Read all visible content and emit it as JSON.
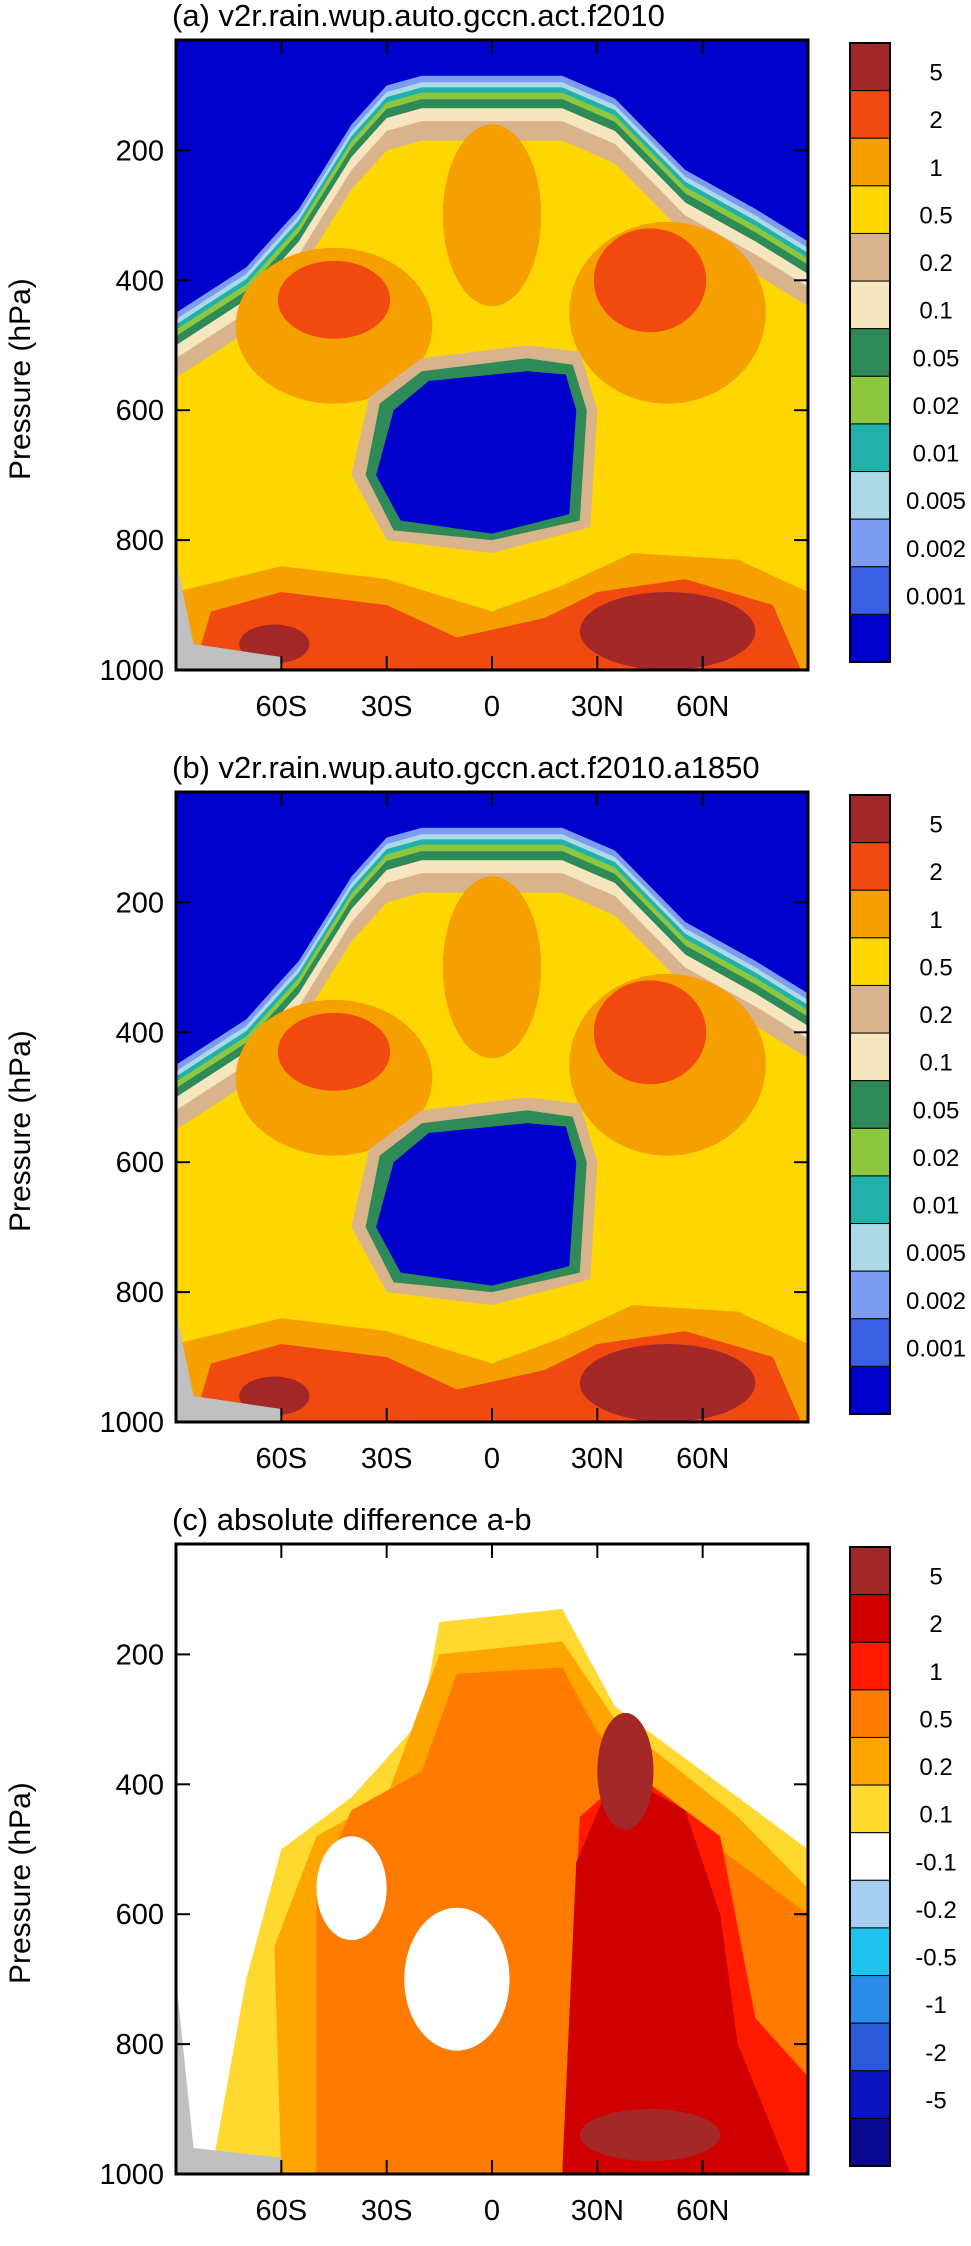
{
  "chart_data": [
    {
      "type": "heatmap",
      "title": "(a) v2r.rain.wup.auto.gccn.act.f2010",
      "ylabel": "Pressure (hPa)",
      "xlabel": "",
      "x_tick_labels": [
        "60S",
        "30S",
        "0",
        "30N",
        "60N"
      ],
      "x_ticks": [
        -60,
        -30,
        0,
        30,
        60
      ],
      "xlim": [
        -90,
        90
      ],
      "y_tick_labels": [
        "200",
        "400",
        "600",
        "800",
        "1000"
      ],
      "y_ticks": [
        200,
        400,
        600,
        800,
        1000
      ],
      "ylim": [
        1000,
        30
      ],
      "colorbar": {
        "labels": [
          "5",
          "2",
          "1",
          "0.5",
          "0.2",
          "0.1",
          "0.05",
          "0.02",
          "0.01",
          "0.005",
          "0.002",
          "0.001"
        ],
        "colors": [
          "#a52828",
          "#f04a10",
          "#f5a000",
          "#ffd700",
          "#d9b38c",
          "#f5e6c0",
          "#2e8b57",
          "#8dc63f",
          "#20b2aa",
          "#add8e6",
          "#7b9cf0",
          "#3a5fe0",
          "#0000cd"
        ]
      }
    },
    {
      "type": "heatmap",
      "title": "(b) v2r.rain.wup.auto.gccn.act.f2010.a1850",
      "ylabel": "Pressure (hPa)",
      "xlabel": "",
      "x_tick_labels": [
        "60S",
        "30S",
        "0",
        "30N",
        "60N"
      ],
      "x_ticks": [
        -60,
        -30,
        0,
        30,
        60
      ],
      "xlim": [
        -90,
        90
      ],
      "y_tick_labels": [
        "200",
        "400",
        "600",
        "800",
        "1000"
      ],
      "y_ticks": [
        200,
        400,
        600,
        800,
        1000
      ],
      "ylim": [
        1000,
        30
      ],
      "colorbar": {
        "labels": [
          "5",
          "2",
          "1",
          "0.5",
          "0.2",
          "0.1",
          "0.05",
          "0.02",
          "0.01",
          "0.005",
          "0.002",
          "0.001"
        ],
        "colors": [
          "#a52828",
          "#f04a10",
          "#f5a000",
          "#ffd700",
          "#d9b38c",
          "#f5e6c0",
          "#2e8b57",
          "#8dc63f",
          "#20b2aa",
          "#add8e6",
          "#7b9cf0",
          "#3a5fe0",
          "#0000cd"
        ]
      }
    },
    {
      "type": "heatmap",
      "title": "(c) absolute difference a-b",
      "ylabel": "Pressure (hPa)",
      "xlabel": "",
      "x_tick_labels": [
        "60S",
        "30S",
        "0",
        "30N",
        "60N"
      ],
      "x_ticks": [
        -60,
        -30,
        0,
        30,
        60
      ],
      "xlim": [
        -90,
        90
      ],
      "y_tick_labels": [
        "200",
        "400",
        "600",
        "800",
        "1000"
      ],
      "y_ticks": [
        200,
        400,
        600,
        800,
        1000
      ],
      "ylim": [
        1000,
        30
      ],
      "colorbar": {
        "labels": [
          "5",
          "2",
          "1",
          "0.5",
          "0.2",
          "0.1",
          "-0.1",
          "-0.2",
          "-0.5",
          "-1",
          "-2",
          "-5"
        ],
        "colors": [
          "#a52828",
          "#d10000",
          "#ff1a00",
          "#ff7a00",
          "#ffa500",
          "#ffd830",
          "#ffffff",
          "#a6cef0",
          "#1ec3f0",
          "#2a8ce8",
          "#2a5ad8",
          "#0a14c0",
          "#0a0a90"
        ]
      }
    }
  ]
}
